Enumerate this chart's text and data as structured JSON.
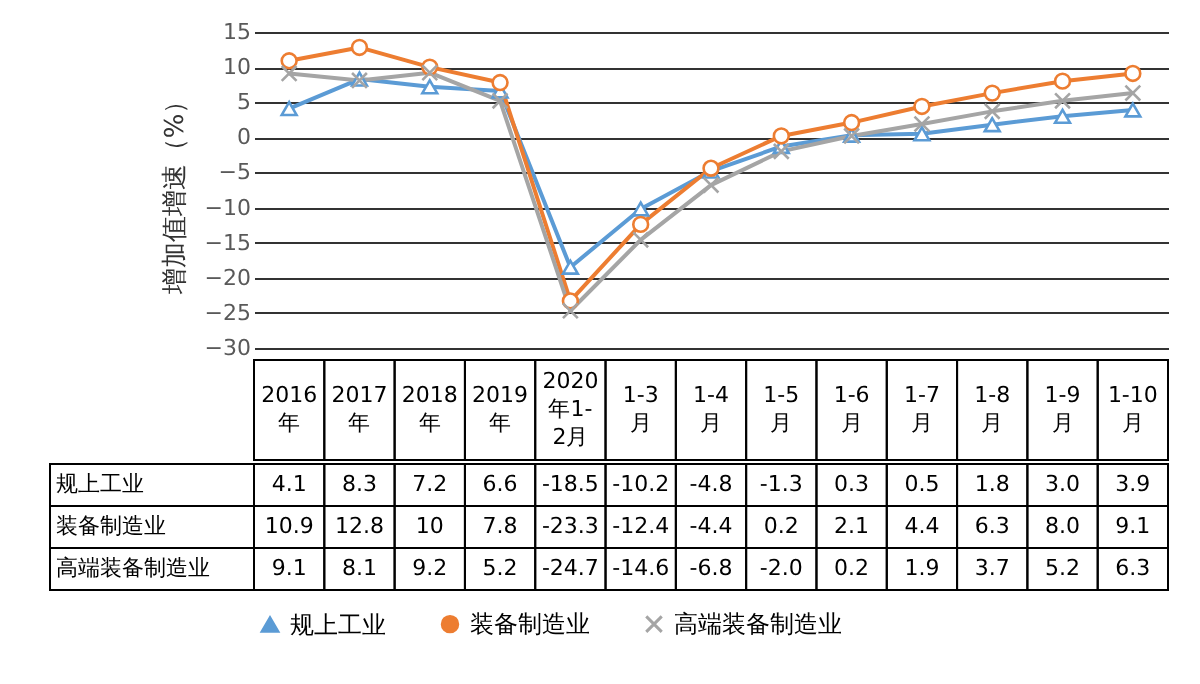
{
  "chart_data": {
    "type": "line",
    "ylabel": "增加值增速（%）",
    "categories": [
      "2016年",
      "2017年",
      "2018年",
      "2019年",
      "2020年1-2月",
      "1-3月",
      "1-4月",
      "1-5月",
      "1-6月",
      "1-7月",
      "1-8月",
      "1-9月",
      "1-10月"
    ],
    "series": [
      {
        "name": "规上工业",
        "color": "#5b9bd5",
        "marker": "triangle",
        "values": [
          4.1,
          8.3,
          7.2,
          6.6,
          -18.5,
          -10.2,
          -4.8,
          -1.3,
          0.3,
          0.5,
          1.8,
          3.0,
          3.9
        ],
        "value_labels": [
          "4.1",
          "8.3",
          "7.2",
          "6.6",
          "-18.5",
          "-10.2",
          "-4.8",
          "-1.3",
          "0.3",
          "0.5",
          "1.8",
          "3.0",
          "3.9"
        ]
      },
      {
        "name": "装备制造业",
        "color": "#ed7d31",
        "marker": "circle",
        "values": [
          10.9,
          12.8,
          10,
          7.8,
          -23.3,
          -12.4,
          -4.4,
          0.2,
          2.1,
          4.4,
          6.3,
          8.0,
          9.1
        ],
        "value_labels": [
          "10.9",
          "12.8",
          "10",
          "7.8",
          "-23.3",
          "-12.4",
          "-4.4",
          "0.2",
          "2.1",
          "4.4",
          "6.3",
          "8.0",
          "9.1"
        ]
      },
      {
        "name": "高端装备制造业",
        "color": "#a5a5a5",
        "marker": "cross",
        "values": [
          9.1,
          8.1,
          9.2,
          5.2,
          -24.7,
          -14.6,
          -6.8,
          -2.0,
          0.2,
          1.9,
          3.7,
          5.2,
          6.3
        ],
        "value_labels": [
          "9.1",
          "8.1",
          "9.2",
          "5.2",
          "-24.7",
          "-14.6",
          "-6.8",
          "-2.0",
          "0.2",
          "1.9",
          "3.7",
          "5.2",
          "6.3"
        ]
      }
    ],
    "ylim": [
      -30,
      15
    ],
    "yticks": [
      -30,
      -25,
      -20,
      -15,
      -10,
      -5,
      0,
      5,
      10,
      15
    ],
    "grid": "y",
    "legend": "bottom"
  }
}
